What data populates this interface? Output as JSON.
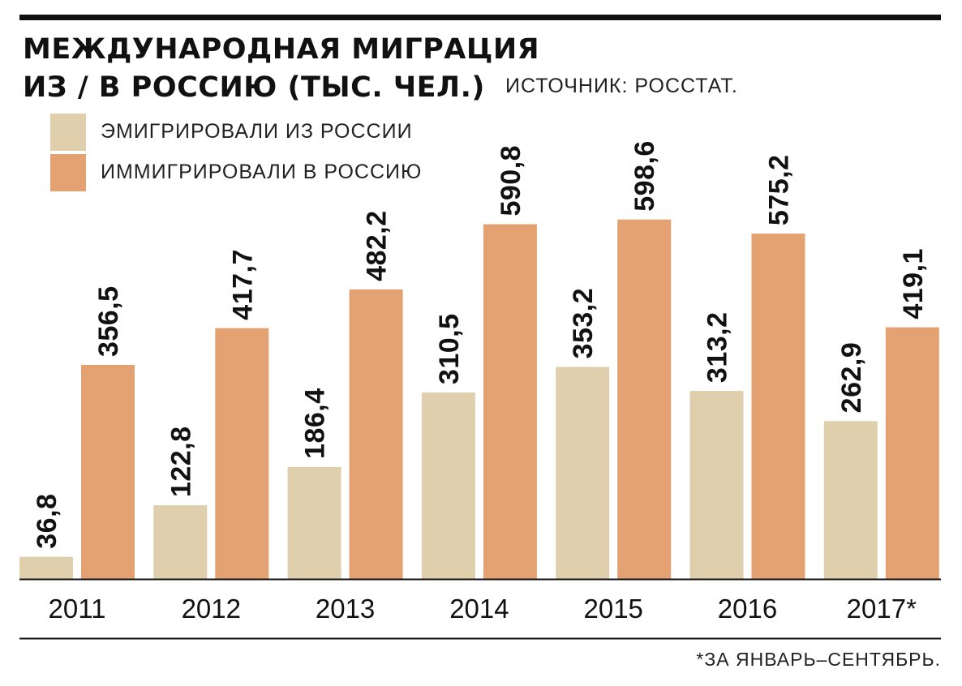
{
  "header": {
    "title_line1": "МЕЖДУНАРОДНАЯ МИГРАЦИЯ",
    "title_line2": "ИЗ / В РОССИЮ (ТЫС. ЧЕЛ.)",
    "source": "ИСТОЧНИК: РОССТАТ."
  },
  "legend": {
    "emigrated": "ЭМИГРИРОВАЛИ ИЗ РОССИИ",
    "immigrated": "ИММИГРИРОВАЛИ В РОССИЮ"
  },
  "footnote": "*ЗА ЯНВАРЬ–СЕНТЯБРЬ.",
  "chart_data": {
    "type": "bar",
    "title": "МЕЖДУНАРОДНАЯ МИГРАЦИЯ ИЗ / В РОССИЮ (ТЫС. ЧЕЛ.)",
    "categories": [
      "2011",
      "2012",
      "2013",
      "2014",
      "2015",
      "2016",
      "2017*"
    ],
    "series": [
      {
        "name": "ЭМИГРИРОВАЛИ ИЗ РОССИИ",
        "color": "#dfcfad",
        "values": [
          36.8,
          122.8,
          186.4,
          310.5,
          353.2,
          313.2,
          262.9
        ],
        "labels": [
          "36,8",
          "122,8",
          "186,4",
          "310,5",
          "353,2",
          "313,2",
          "262,9"
        ]
      },
      {
        "name": "ИММИГРИРОВАЛИ В РОССИЮ",
        "color": "#e4a171",
        "values": [
          356.5,
          417.7,
          482.2,
          590.8,
          598.6,
          575.2,
          419.1
        ],
        "labels": [
          "356,5",
          "417,7",
          "482,2",
          "590,8",
          "598,6",
          "575,2",
          "419,1"
        ]
      }
    ],
    "xlabel": "",
    "ylabel": "",
    "ylim": [
      0,
      600
    ],
    "grid": false,
    "legend_position": "top-left",
    "axis_color": "#111111"
  }
}
